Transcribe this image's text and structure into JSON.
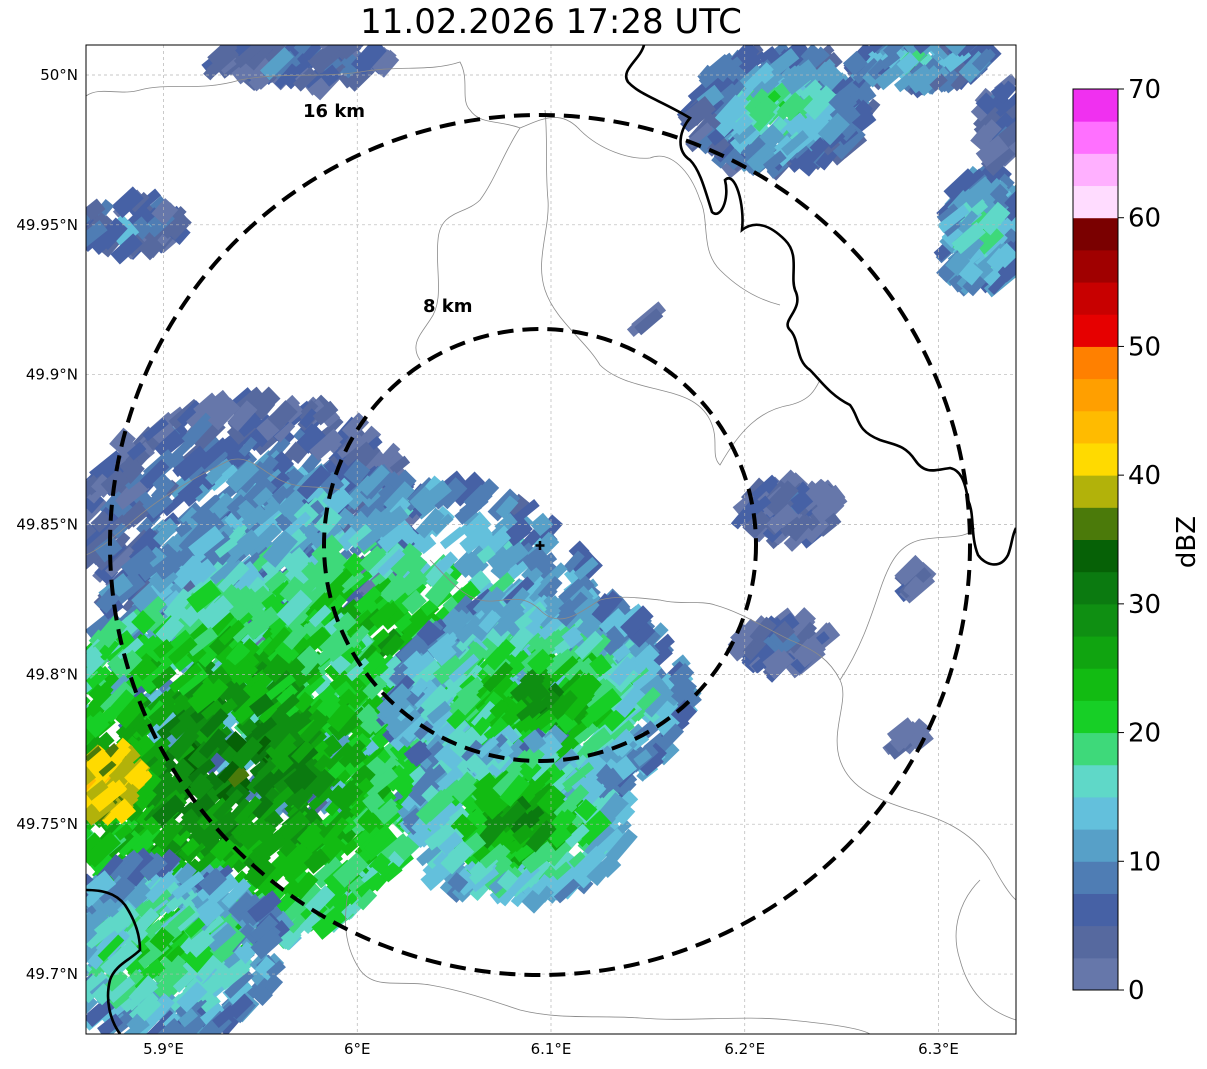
{
  "title": "11.02.2026 17:28 UTC",
  "map": {
    "lon_range": [
      5.86,
      6.34
    ],
    "lat_range": [
      49.68,
      50.01
    ],
    "center": {
      "lon": 6.095,
      "lat": 49.843
    },
    "x_ticks": [
      {
        "value": 5.9,
        "label": "5.9°E"
      },
      {
        "value": 6.0,
        "label": "6°E"
      },
      {
        "value": 6.1,
        "label": "6.1°E"
      },
      {
        "value": 6.2,
        "label": "6.2°E"
      },
      {
        "value": 6.3,
        "label": "6.3°E"
      }
    ],
    "y_ticks": [
      {
        "value": 49.7,
        "label": "49.7°N"
      },
      {
        "value": 49.75,
        "label": "49.75°N"
      },
      {
        "value": 49.8,
        "label": "49.8°N"
      },
      {
        "value": 49.85,
        "label": "49.85°N"
      },
      {
        "value": 49.9,
        "label": "49.9°N"
      },
      {
        "value": 49.95,
        "label": "49.95°N"
      },
      {
        "value": 50.0,
        "label": "50°N"
      }
    ],
    "rings": [
      {
        "radius_km": 8,
        "label": "8 km"
      },
      {
        "radius_km": 16,
        "label": "16 km"
      }
    ]
  },
  "colorbar": {
    "label": "dBZ",
    "range": [
      0,
      70
    ],
    "tick_labels": [
      "0",
      "10",
      "20",
      "30",
      "40",
      "50",
      "60",
      "70"
    ],
    "colors": [
      "#6677aa",
      "#56699f",
      "#4661a5",
      "#4f7db4",
      "#57a0c8",
      "#63c0dc",
      "#5fd8c8",
      "#3ed97a",
      "#17cf26",
      "#12bb12",
      "#10a410",
      "#0f8f12",
      "#0b7a10",
      "#066106",
      "#4b7a0a",
      "#b2b20a",
      "#ffda00",
      "#ffbb00",
      "#ff9f00",
      "#ff8000",
      "#e60000",
      "#c80000",
      "#a00000",
      "#7a0000",
      "#ffdcff",
      "#ffb0ff",
      "#ff70ff",
      "#f030f0"
    ]
  }
}
